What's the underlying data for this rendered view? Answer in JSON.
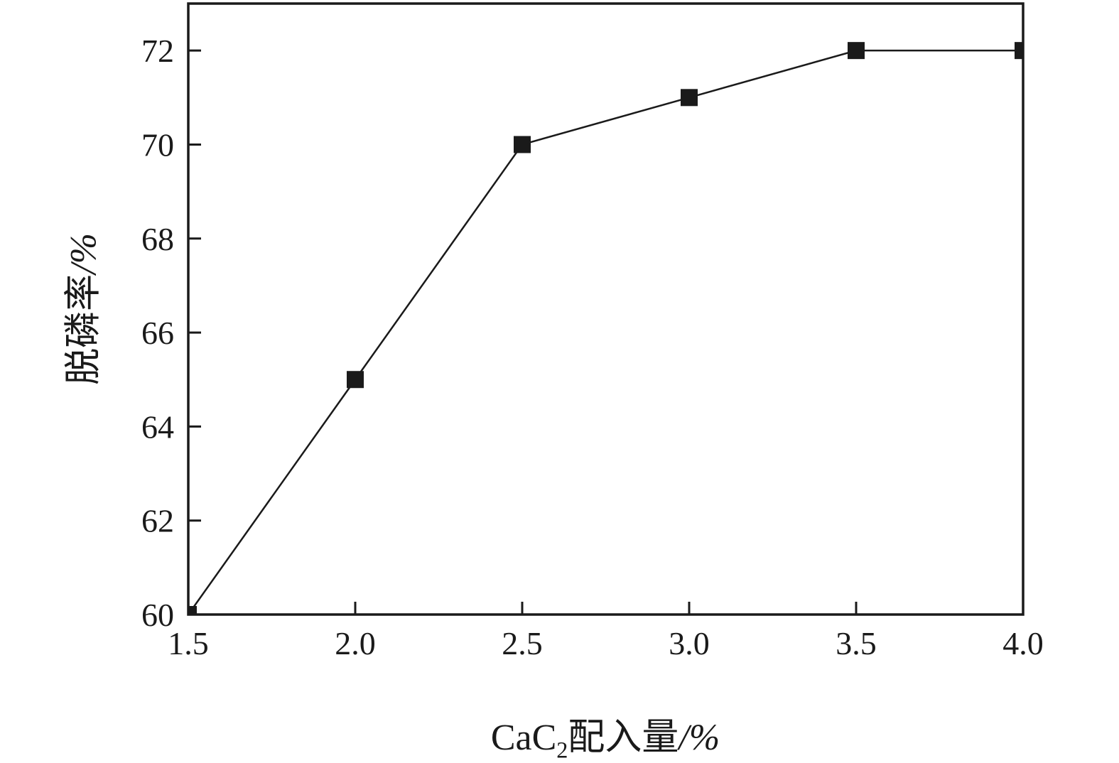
{
  "chart_data": {
    "type": "line",
    "title": "",
    "x": [
      1.5,
      2.0,
      2.5,
      3.0,
      3.5,
      4.0
    ],
    "values": [
      60,
      65,
      70,
      71,
      72,
      72
    ],
    "series": [
      {
        "name": "脱磷率",
        "values": [
          60,
          65,
          70,
          71,
          72,
          72
        ]
      }
    ],
    "xlabel": "CaC2配入量/%",
    "ylabel": "脱磷率/%",
    "xlabel_parts": {
      "prefix": "CaC",
      "sub": "2",
      "suffix": "配入量",
      "unit": "/%"
    },
    "ylabel_parts": {
      "text": "脱磷率",
      "unit": "/%"
    },
    "xlim": [
      1.5,
      4.0
    ],
    "ylim": [
      60,
      73
    ],
    "x_tick_values": [
      1.5,
      2.0,
      2.5,
      3.0,
      3.5,
      4.0
    ],
    "x_ticks": [
      "1.5",
      "2.0",
      "2.5",
      "3.0",
      "3.5",
      "4.0"
    ],
    "y_tick_values": [
      60,
      62,
      64,
      66,
      68,
      70,
      72
    ],
    "y_ticks": [
      "60",
      "62",
      "64",
      "66",
      "68",
      "70",
      "72"
    ],
    "grid": false,
    "legend": "none",
    "marker": "square",
    "line_color": "#1a1a1a",
    "background": "#ffffff"
  }
}
